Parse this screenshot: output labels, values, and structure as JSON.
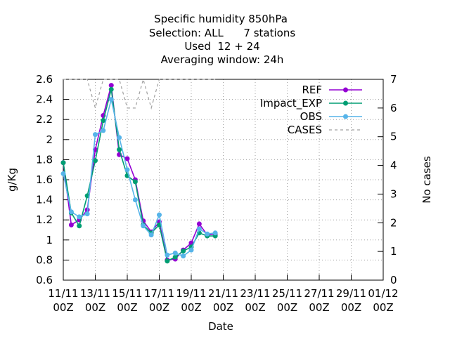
{
  "chart_data": {
    "type": "line",
    "title": [
      "Specific humidity 850hPa",
      "Selection: ALL      7 stations",
      "Used  12 + 24",
      "Averaging window: 24h"
    ],
    "xlabel": "Date",
    "ylabel": "g/Kg",
    "y2label": "No cases",
    "x": [
      "11/11 00Z",
      "11/11 12Z",
      "12/11 00Z",
      "12/11 12Z",
      "13/11 00Z",
      "13/11 12Z",
      "14/11 00Z",
      "14/11 12Z",
      "15/11 00Z",
      "15/11 12Z",
      "16/11 00Z",
      "16/11 12Z",
      "17/11 00Z",
      "17/11 12Z",
      "18/11 00Z",
      "18/11 12Z",
      "19/11 00Z",
      "19/11 12Z",
      "20/11 00Z",
      "20/11 12Z"
    ],
    "xlim": [
      "11/11 00Z",
      "01/12 00Z"
    ],
    "xticks": [
      {
        "value": "11/11 00Z",
        "label": "11/11\n00Z"
      },
      {
        "value": "13/11 00Z",
        "label": "13/11\n00Z"
      },
      {
        "value": "15/11 00Z",
        "label": "15/11\n00Z"
      },
      {
        "value": "17/11 00Z",
        "label": "17/11\n00Z"
      },
      {
        "value": "19/11 00Z",
        "label": "19/11\n00Z"
      },
      {
        "value": "21/11 00Z",
        "label": "21/11\n00Z"
      },
      {
        "value": "23/11 00Z",
        "label": "23/11\n00Z"
      },
      {
        "value": "25/11 00Z",
        "label": "25/11\n00Z"
      },
      {
        "value": "27/11 00Z",
        "label": "27/11\n00Z"
      },
      {
        "value": "29/11 00Z",
        "label": "29/11\n00Z"
      },
      {
        "value": "01/12 00Z",
        "label": "01/12\n00Z"
      }
    ],
    "ylim": [
      0.6,
      2.6
    ],
    "yticks": [
      0.6,
      0.8,
      1,
      1.2,
      1.4,
      1.6,
      1.8,
      2,
      2.2,
      2.4,
      2.6
    ],
    "y2lim": [
      0,
      7
    ],
    "y2ticks": [
      0,
      1,
      2,
      3,
      4,
      5,
      6,
      7
    ],
    "grid": true,
    "legend": "top-right",
    "series": [
      {
        "name": "REF",
        "color": "#9400d3",
        "values": [
          1.77,
          1.15,
          1.2,
          1.3,
          1.9,
          2.24,
          2.54,
          1.85,
          1.81,
          1.6,
          1.19,
          1.08,
          1.18,
          0.8,
          0.81,
          0.9,
          0.97,
          1.16,
          1.05,
          1.06
        ]
      },
      {
        "name": "Impact_EXP",
        "color": "#009e73",
        "values": [
          1.77,
          1.27,
          1.14,
          1.44,
          1.79,
          2.19,
          2.5,
          1.9,
          1.64,
          1.58,
          1.15,
          1.07,
          1.15,
          0.79,
          0.83,
          0.89,
          0.93,
          1.07,
          1.04,
          1.04
        ]
      },
      {
        "name": "OBS",
        "color": "#56b4e9",
        "values": [
          1.66,
          1.28,
          1.23,
          1.26,
          2.05,
          2.09,
          2.4,
          2.02,
          1.7,
          1.4,
          1.14,
          1.05,
          1.25,
          0.85,
          0.87,
          0.84,
          0.9,
          1.11,
          1.06,
          1.07
        ]
      },
      {
        "name": "CASES",
        "color": "#a0a0a0",
        "dashed": true,
        "axis": "y2",
        "values": [
          7,
          7,
          7,
          7,
          6,
          7,
          7,
          7,
          6,
          6,
          7,
          6,
          7,
          7,
          7,
          7,
          7,
          7,
          7,
          7
        ]
      }
    ]
  }
}
